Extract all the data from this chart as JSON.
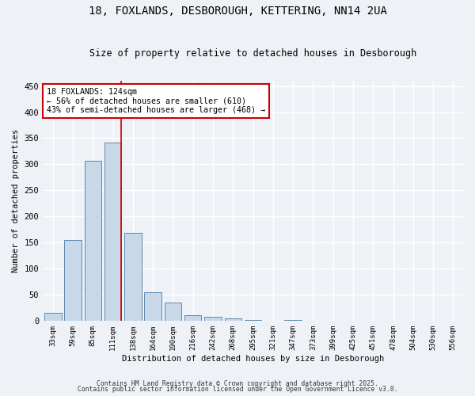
{
  "title1": "18, FOXLANDS, DESBOROUGH, KETTERING, NN14 2UA",
  "title2": "Size of property relative to detached houses in Desborough",
  "xlabel": "Distribution of detached houses by size in Desborough",
  "ylabel": "Number of detached properties",
  "bar_labels": [
    "33sqm",
    "59sqm",
    "85sqm",
    "111sqm",
    "138sqm",
    "164sqm",
    "190sqm",
    "216sqm",
    "242sqm",
    "268sqm",
    "295sqm",
    "321sqm",
    "347sqm",
    "373sqm",
    "399sqm",
    "425sqm",
    "451sqm",
    "478sqm",
    "504sqm",
    "530sqm",
    "556sqm"
  ],
  "bar_values": [
    15,
    155,
    307,
    342,
    168,
    55,
    35,
    10,
    8,
    5,
    2,
    0,
    1,
    0,
    0,
    0,
    0,
    0,
    0,
    0,
    0
  ],
  "bar_color": "#c8d8e8",
  "bar_edge_color": "#5a8ab0",
  "vline_x": 3.42,
  "vline_color": "#cc0000",
  "annotation_text": "18 FOXLANDS: 124sqm\n← 56% of detached houses are smaller (610)\n43% of semi-detached houses are larger (468) →",
  "annotation_box_color": "#ffffff",
  "annotation_box_edge": "#cc0000",
  "ylim": [
    0,
    460
  ],
  "yticks": [
    0,
    50,
    100,
    150,
    200,
    250,
    300,
    350,
    400,
    450
  ],
  "footer1": "Contains HM Land Registry data © Crown copyright and database right 2025.",
  "footer2": "Contains public sector information licensed under the Open Government Licence v3.0.",
  "bg_color": "#eef2f7",
  "plot_bg_color": "#eef2f7",
  "grid_color": "#ffffff"
}
